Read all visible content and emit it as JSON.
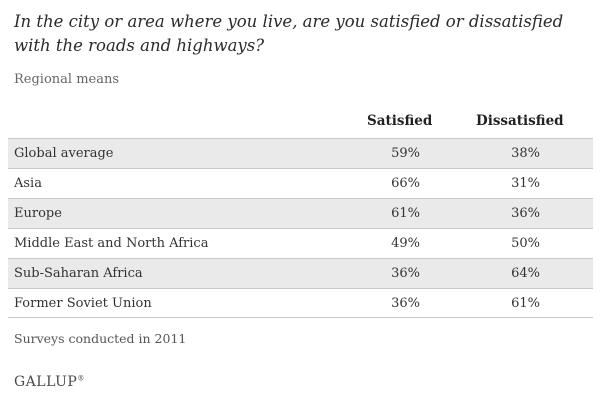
{
  "title": "In the city or area where you live, are you satisfied or dissatisfied with the roads and highways?",
  "subtitle": "Regional means",
  "note": "Surveys conducted in 2011",
  "logo": "GALLUP",
  "colors": {
    "row_shade": "#eaeaea",
    "rule": "#c9c9c9",
    "text": "#333333"
  },
  "chart_data": {
    "type": "table",
    "title": "In the city or area where you live, are you satisfied or dissatisfied with the roads and highways?",
    "subtitle": "Regional means",
    "columns": [
      "Satisfied",
      "Dissatisfied"
    ],
    "rows": [
      {
        "region": "Global average",
        "satisfied": "59%",
        "dissatisfied": "38%"
      },
      {
        "region": "Asia",
        "satisfied": "66%",
        "dissatisfied": "31%"
      },
      {
        "region": "Europe",
        "satisfied": "61%",
        "dissatisfied": "36%"
      },
      {
        "region": "Middle East and North Africa",
        "satisfied": "49%",
        "dissatisfied": "50%"
      },
      {
        "region": "Sub-Saharan Africa",
        "satisfied": "36%",
        "dissatisfied": "64%"
      },
      {
        "region": "Former Soviet Union",
        "satisfied": "36%",
        "dissatisfied": "61%"
      }
    ],
    "note": "Surveys conducted in 2011"
  }
}
